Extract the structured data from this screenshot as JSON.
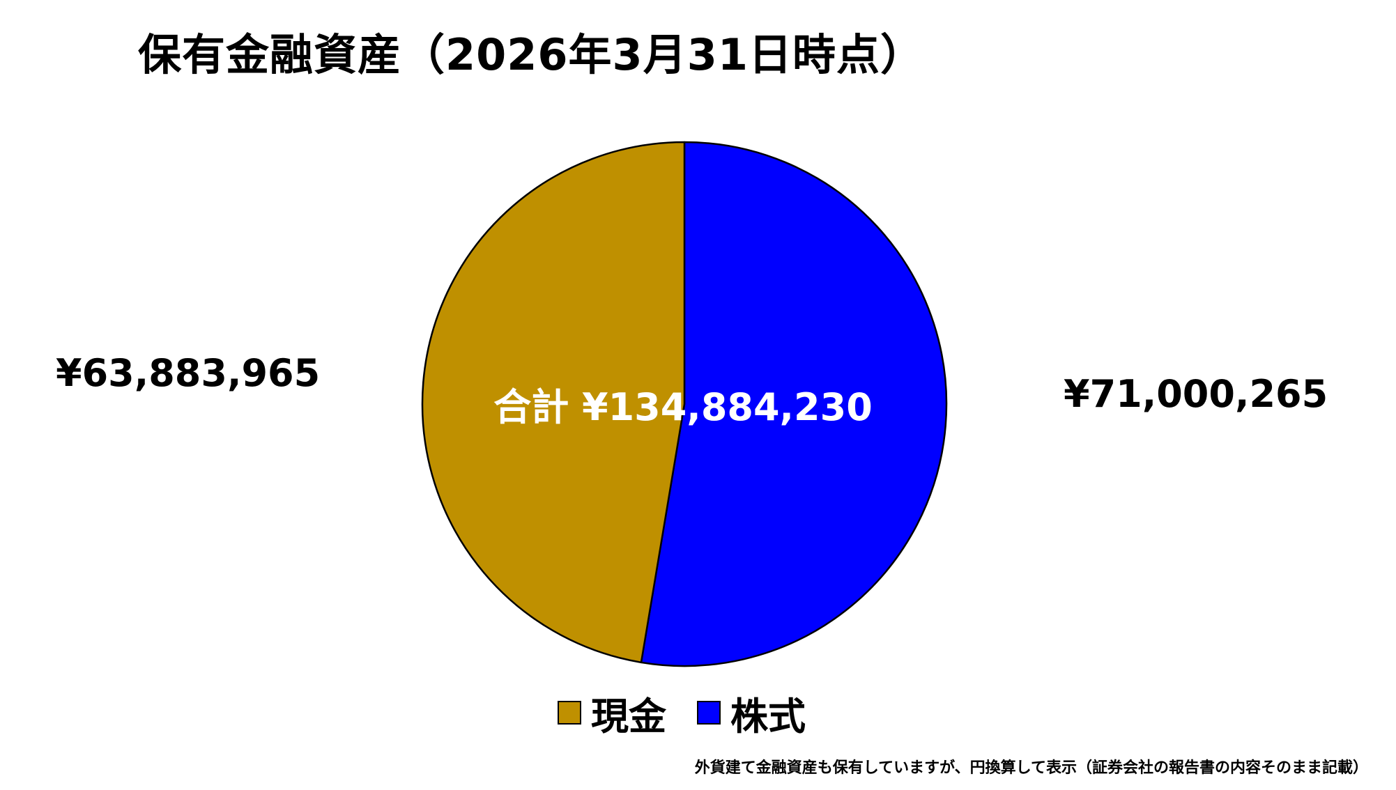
{
  "chart_data": {
    "type": "pie",
    "title": "保有金融資産（2026年3月31日時点）",
    "series": [
      {
        "name": "株式",
        "value": 71000265,
        "label": "¥71,000,265",
        "color": "#0000FF"
      },
      {
        "name": "現金",
        "value": 63883965,
        "label": "¥63,883,965",
        "color": "#BF9000"
      }
    ],
    "total_label": "合計 ¥134,884,230",
    "legend": {
      "placement": "bottom",
      "items": [
        {
          "name": "現金",
          "color": "#BF9000"
        },
        {
          "name": "株式",
          "color": "#0000FF"
        }
      ]
    },
    "footnote": "外貨建て金融資産も保有していますが、円換算して表示（証券会社の報告書の内容そのまま記載）"
  }
}
